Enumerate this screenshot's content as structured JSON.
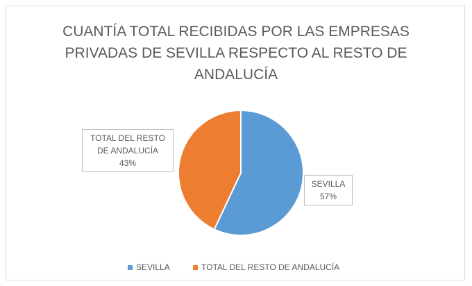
{
  "chart_data": {
    "type": "pie",
    "title": "CUANTÍA TOTAL RECIBIDAS POR LAS EMPRESAS PRIVADAS DE SEVILLA RESPECTO AL RESTO DE ANDALUCÍA",
    "categories": [
      "SEVILLA",
      "TOTAL DEL RESTO DE ANDALUCÍA"
    ],
    "values": [
      57,
      43
    ],
    "value_labels": [
      "57%",
      "43%"
    ],
    "colors": [
      "#5b9bd5",
      "#ed7d31"
    ],
    "legend": "bottom"
  }
}
